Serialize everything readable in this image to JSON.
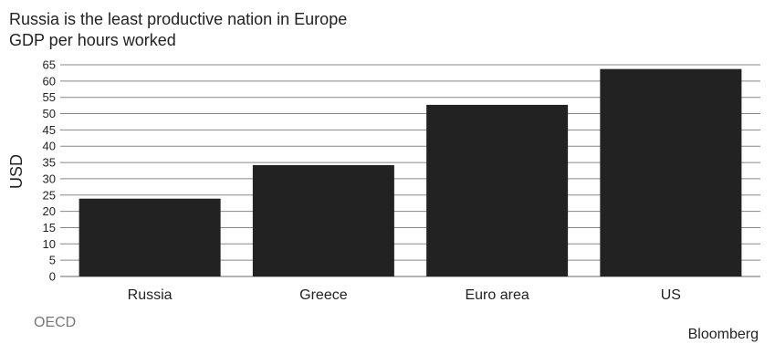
{
  "chart_data": {
    "type": "bar",
    "title": "Russia is the least productive nation in Europe",
    "subtitle": "GDP per hours worked",
    "ylabel": "USD",
    "xlabel": "",
    "categories": [
      "Russia",
      "Greece",
      "Euro area",
      "US"
    ],
    "values": [
      23.9,
      34.2,
      52.7,
      63.7
    ],
    "ylim": [
      0,
      65
    ],
    "yticks": [
      0,
      5,
      10,
      15,
      20,
      25,
      30,
      35,
      40,
      45,
      50,
      55,
      60,
      65
    ],
    "grid": true,
    "bar_color": "#222222",
    "grid_color": "#888888"
  },
  "footer": {
    "source": "OECD",
    "brand": "Bloomberg"
  }
}
